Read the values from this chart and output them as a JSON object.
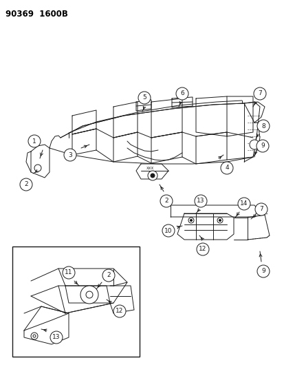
{
  "title": "90369  1600B",
  "bg": "#ffffff",
  "fg": "#000000",
  "figsize": [
    4.14,
    5.33
  ],
  "dpi": 100
}
